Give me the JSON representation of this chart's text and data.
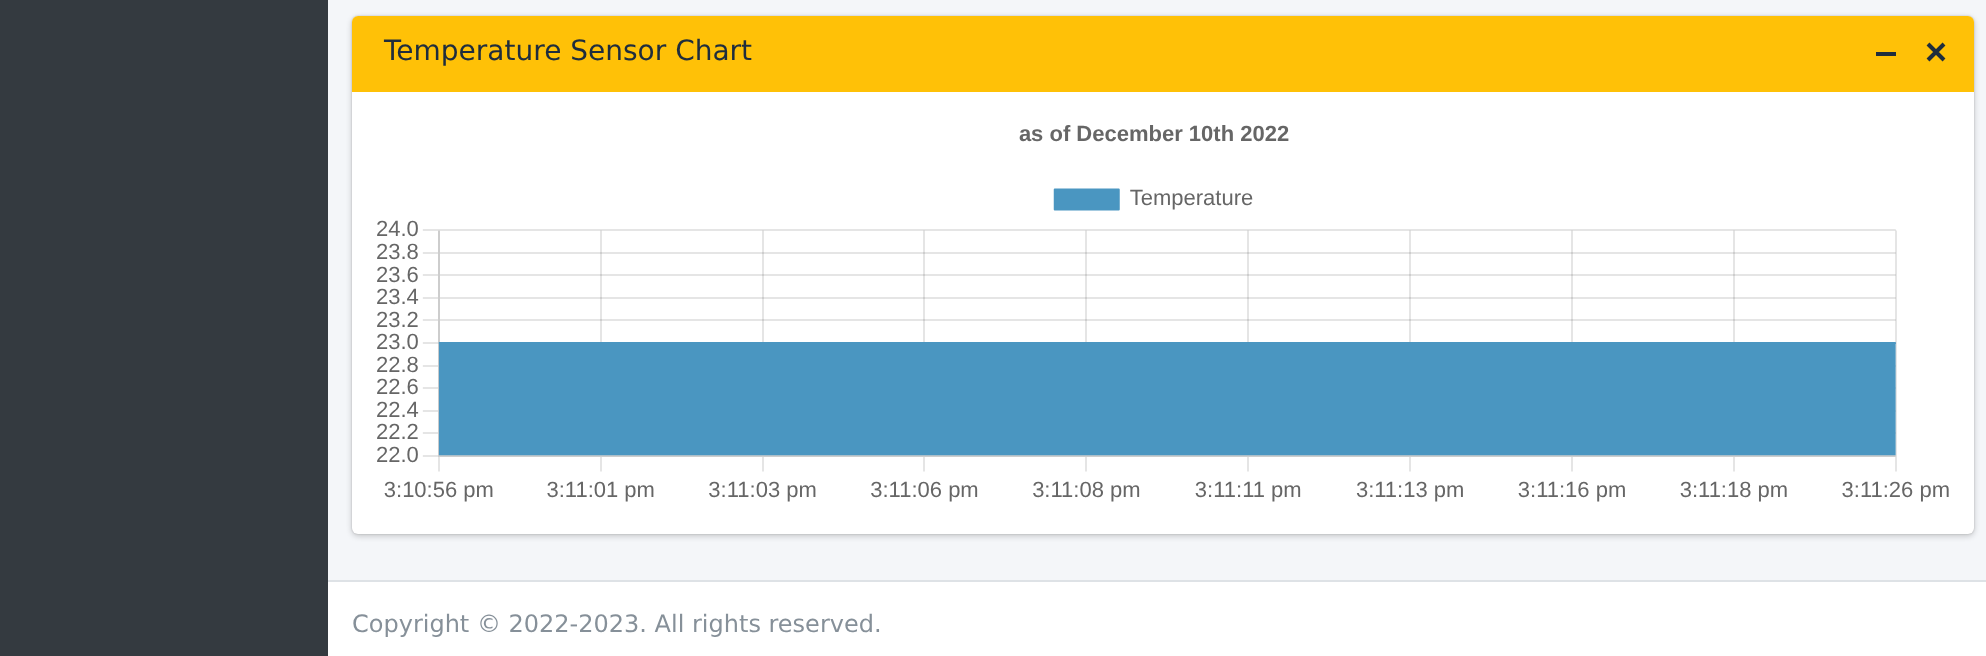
{
  "chart_data": {
    "type": "area",
    "title": "Temperature Sensor Chart",
    "subtitle": "as of December 10th 2022",
    "categories": [
      "3:10:56 pm",
      "3:11:01 pm",
      "3:11:03 pm",
      "3:11:06 pm",
      "3:11:08 pm",
      "3:11:11 pm",
      "3:11:13 pm",
      "3:11:16 pm",
      "3:11:18 pm",
      "3:11:26 pm"
    ],
    "series": [
      {
        "name": "Temperature",
        "color": "#4a96c1",
        "values": [
          23,
          23,
          23,
          23,
          23,
          23,
          23,
          23,
          23,
          23
        ]
      }
    ],
    "ylim": [
      22,
      24
    ],
    "yticks": [
      {
        "value": 22,
        "label": "22.0"
      },
      22.2,
      22.4,
      22.6,
      22.8,
      {
        "value": 23,
        "label": "23.0"
      },
      23.2,
      23.4,
      23.6,
      23.8,
      {
        "value": 24,
        "label": "24.0"
      }
    ],
    "grid": true,
    "legend": "top",
    "marker": "none",
    "annotations": [
      "Copyright © 2022-2023. All rights reserved."
    ]
  }
}
